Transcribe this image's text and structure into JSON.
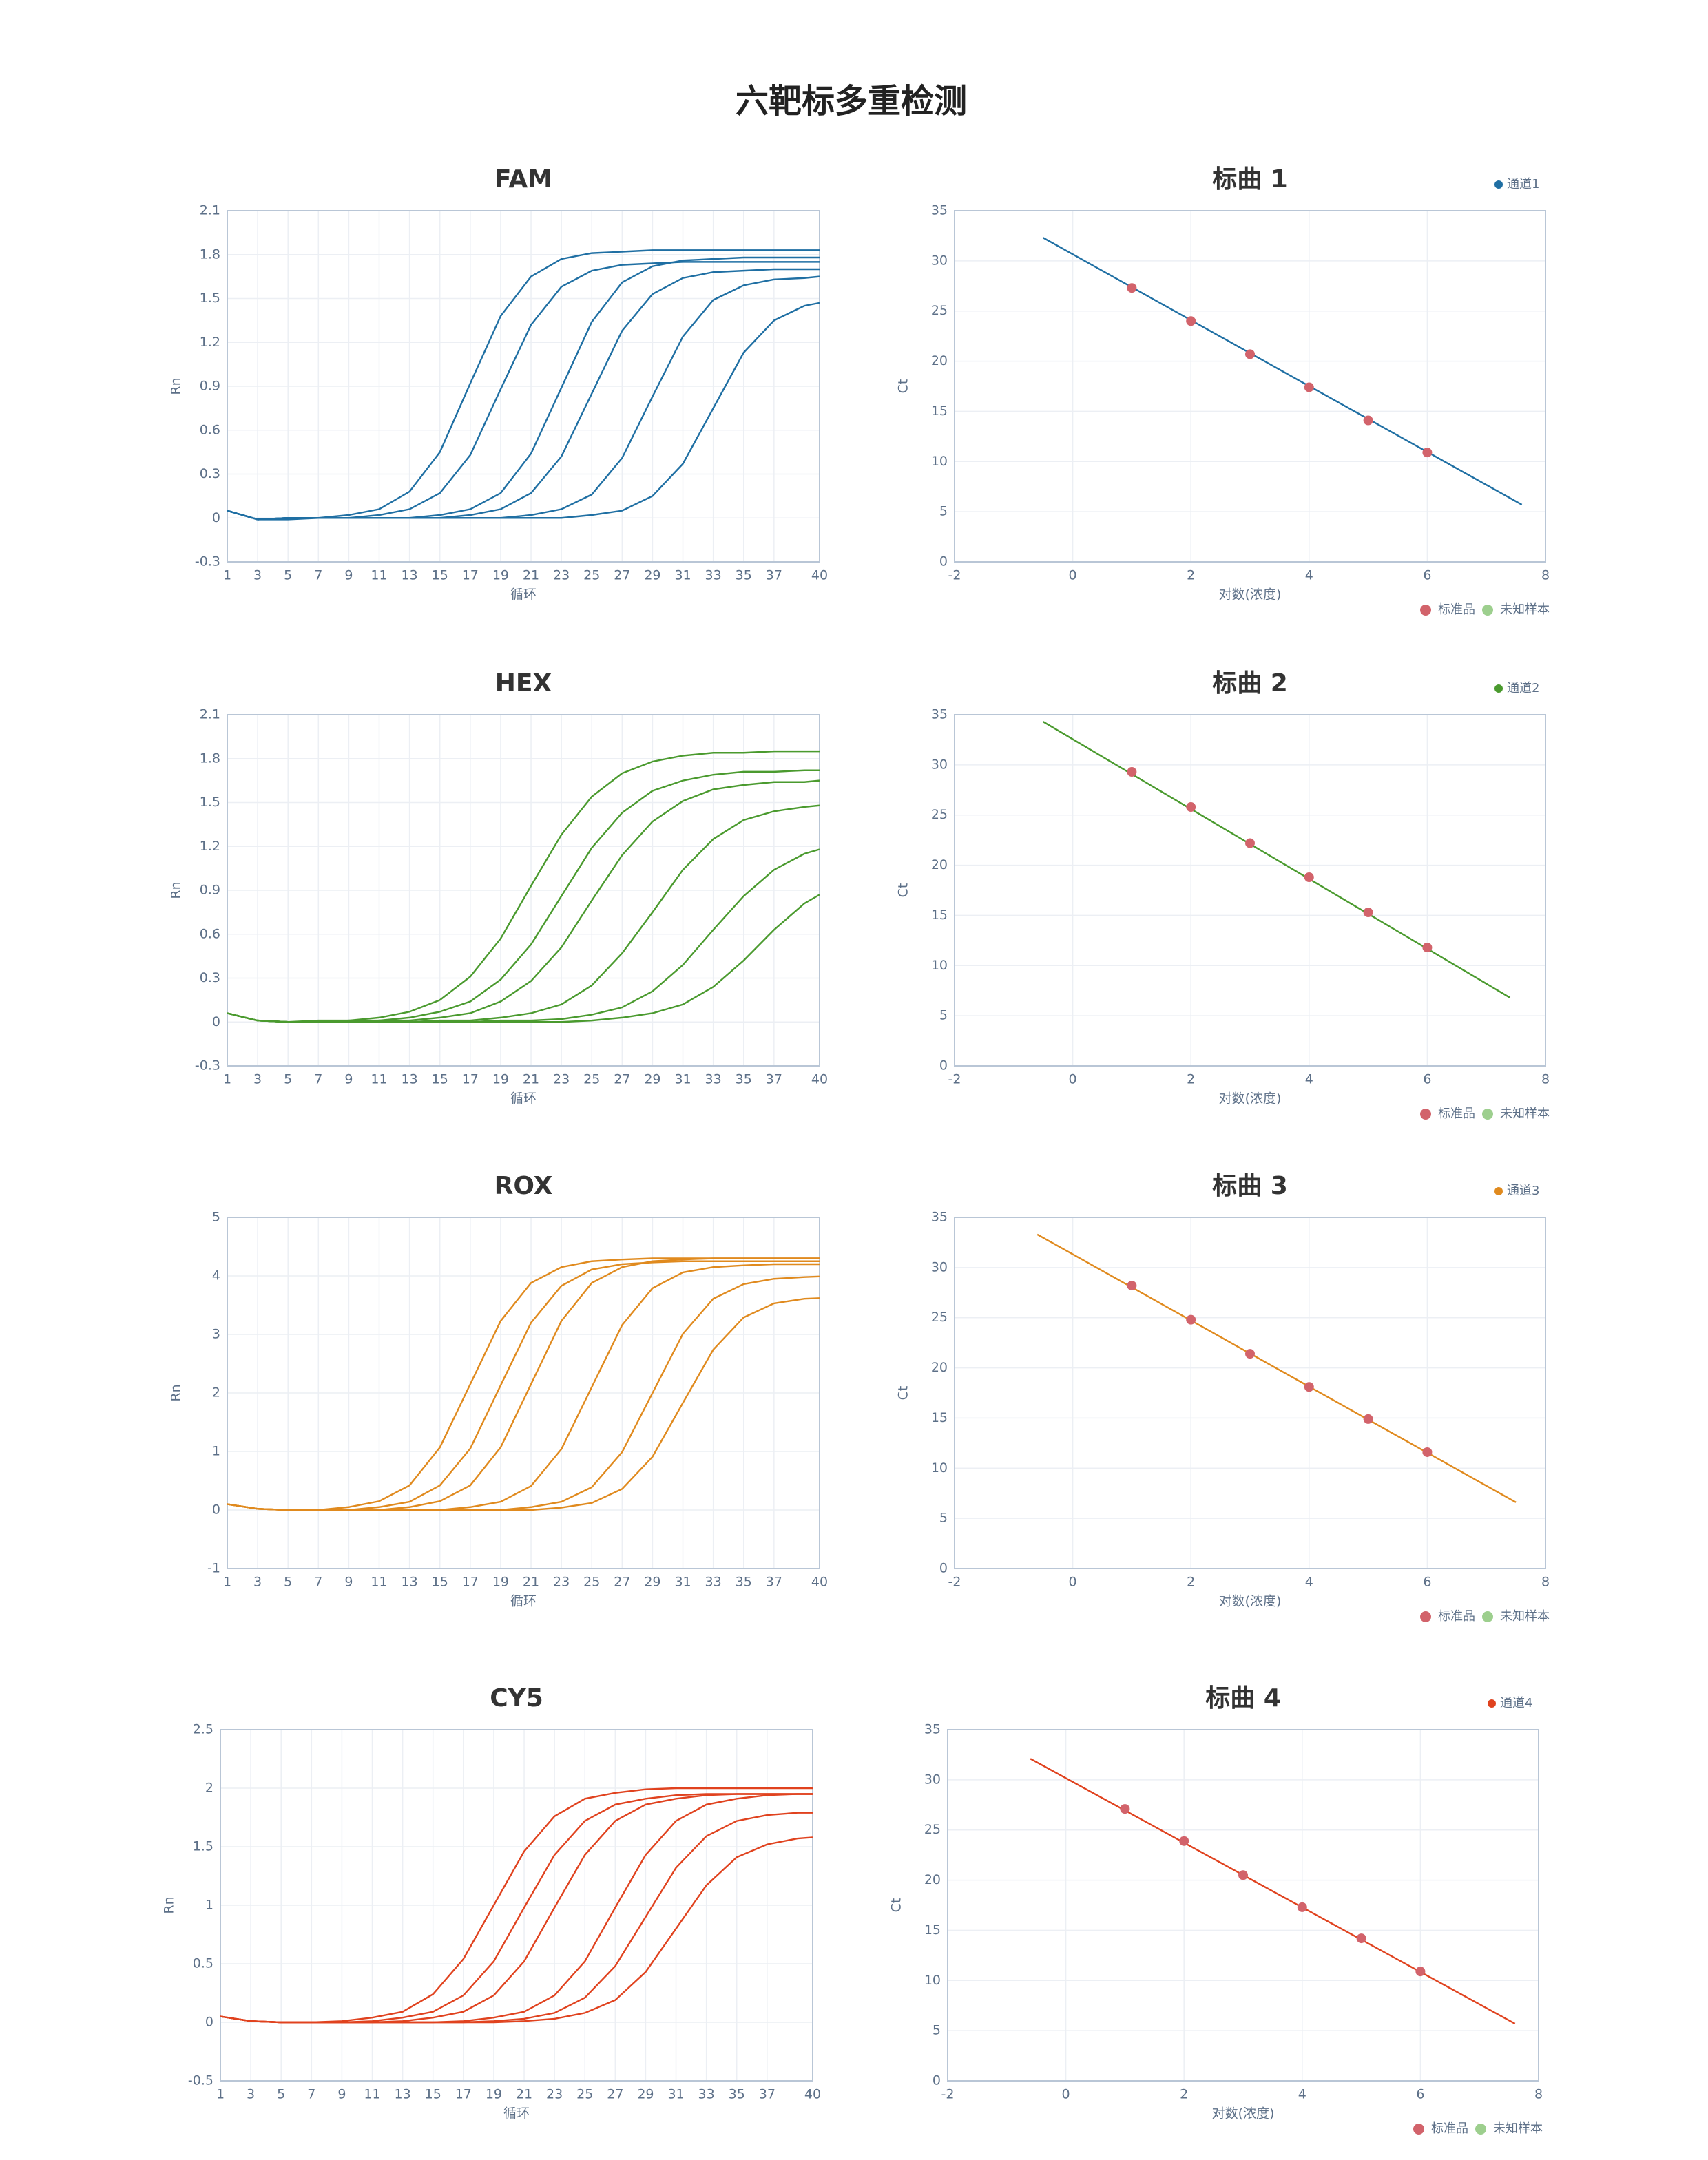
{
  "title": "六靶标多重检测",
  "chart_data": [
    {
      "type": "line",
      "title": "FAM",
      "x_label": "循环",
      "y_label": "Rn",
      "grid": true,
      "x": [
        1,
        3,
        5,
        7,
        9,
        11,
        13,
        15,
        17,
        19,
        21,
        23,
        25,
        27,
        29,
        31,
        33,
        35,
        37,
        39,
        40
      ],
      "xlim": [
        1,
        40
      ],
      "xticks": [
        1,
        3,
        5,
        7,
        9,
        11,
        13,
        15,
        17,
        19,
        21,
        23,
        25,
        27,
        29,
        31,
        33,
        35,
        37,
        40
      ],
      "ylim": [
        -0.3,
        2.1
      ],
      "yticks": [
        -0.3,
        0,
        0.3,
        0.6,
        0.9,
        1.2,
        1.5,
        1.8,
        2.1
      ],
      "series": [
        {
          "color": "#1f6fa3",
          "values": [
            0.05,
            -0.01,
            -0.01,
            0,
            0.02,
            0.06,
            0.18,
            0.45,
            0.92,
            1.38,
            1.65,
            1.77,
            1.81,
            1.82,
            1.83,
            1.83,
            1.83,
            1.83,
            1.83,
            1.83,
            1.83
          ]
        },
        {
          "color": "#1f6fa3",
          "values": [
            0.05,
            -0.01,
            0,
            0,
            0,
            0.02,
            0.06,
            0.17,
            0.43,
            0.88,
            1.32,
            1.58,
            1.69,
            1.73,
            1.74,
            1.75,
            1.75,
            1.75,
            1.75,
            1.75,
            1.75
          ]
        },
        {
          "color": "#1f6fa3",
          "values": [
            0.05,
            -0.01,
            0,
            0,
            0,
            0,
            0,
            0.02,
            0.06,
            0.17,
            0.44,
            0.89,
            1.34,
            1.61,
            1.72,
            1.76,
            1.77,
            1.78,
            1.78,
            1.78,
            1.78
          ]
        },
        {
          "color": "#1f6fa3",
          "values": [
            0.05,
            -0.01,
            0,
            0,
            0,
            0,
            0,
            0,
            0.02,
            0.06,
            0.17,
            0.42,
            0.85,
            1.28,
            1.53,
            1.64,
            1.68,
            1.69,
            1.7,
            1.7,
            1.7
          ]
        },
        {
          "color": "#1f6fa3",
          "values": [
            0.05,
            -0.01,
            0,
            0,
            0,
            0,
            0,
            0,
            0,
            0,
            0.02,
            0.06,
            0.16,
            0.41,
            0.83,
            1.24,
            1.49,
            1.59,
            1.63,
            1.64,
            1.65
          ]
        },
        {
          "color": "#1f6fa3",
          "values": [
            0.05,
            -0.01,
            0,
            0,
            0,
            0,
            0,
            0,
            0,
            0,
            0,
            0,
            0.02,
            0.05,
            0.15,
            0.37,
            0.75,
            1.13,
            1.35,
            1.45,
            1.47
          ]
        }
      ]
    },
    {
      "type": "scatter",
      "title": "标曲 1",
      "x_label": "对数(浓度)",
      "y_label": "Ct",
      "grid": true,
      "legend": "bottom-right",
      "xlim": [
        -2,
        8
      ],
      "xticks": [
        -2,
        0,
        2,
        4,
        6,
        8
      ],
      "ylim": [
        0,
        35
      ],
      "yticks": [
        0,
        5,
        10,
        15,
        20,
        25,
        30,
        35
      ],
      "fit": {
        "name": "通道1",
        "color": "#1f6fa3",
        "x": [
          -0.5,
          7.6
        ],
        "values": [
          32.3,
          5.7
        ]
      },
      "series": [
        {
          "name": "标准品",
          "color": "#d2636b",
          "x": [
            1,
            2,
            3,
            4,
            5,
            6
          ],
          "values": [
            27.3,
            24.0,
            20.7,
            17.4,
            14.1,
            10.9
          ]
        },
        {
          "name": "未知样本",
          "color": "#9dcf8e",
          "x": [],
          "values": []
        }
      ]
    },
    {
      "type": "line",
      "title": "HEX",
      "x_label": "循环",
      "y_label": "Rn",
      "grid": true,
      "x": [
        1,
        3,
        5,
        7,
        9,
        11,
        13,
        15,
        17,
        19,
        21,
        23,
        25,
        27,
        29,
        31,
        33,
        35,
        37,
        39,
        40
      ],
      "xlim": [
        1,
        40
      ],
      "xticks": [
        1,
        3,
        5,
        7,
        9,
        11,
        13,
        15,
        17,
        19,
        21,
        23,
        25,
        27,
        29,
        31,
        33,
        35,
        37,
        40
      ],
      "ylim": [
        -0.3,
        2.1
      ],
      "yticks": [
        -0.3,
        0,
        0.3,
        0.6,
        0.9,
        1.2,
        1.5,
        1.8,
        2.1
      ],
      "series": [
        {
          "color": "#4a9a2e",
          "values": [
            0.06,
            0.01,
            0,
            0.01,
            0.01,
            0.03,
            0.07,
            0.15,
            0.31,
            0.57,
            0.93,
            1.28,
            1.54,
            1.7,
            1.78,
            1.82,
            1.84,
            1.84,
            1.85,
            1.85,
            1.85
          ]
        },
        {
          "color": "#4a9a2e",
          "values": [
            0.06,
            0.01,
            0,
            0,
            0.01,
            0.01,
            0.03,
            0.07,
            0.14,
            0.29,
            0.53,
            0.86,
            1.19,
            1.43,
            1.58,
            1.65,
            1.69,
            1.71,
            1.71,
            1.72,
            1.72
          ]
        },
        {
          "color": "#4a9a2e",
          "values": [
            0.06,
            0.01,
            0,
            0,
            0,
            0.01,
            0.01,
            0.03,
            0.06,
            0.14,
            0.28,
            0.51,
            0.83,
            1.14,
            1.37,
            1.51,
            1.59,
            1.62,
            1.64,
            1.64,
            1.65
          ]
        },
        {
          "color": "#4a9a2e",
          "values": [
            0.06,
            0.01,
            0,
            0,
            0,
            0,
            0,
            0.01,
            0.01,
            0.03,
            0.06,
            0.12,
            0.25,
            0.47,
            0.75,
            1.04,
            1.25,
            1.38,
            1.44,
            1.47,
            1.48
          ]
        },
        {
          "color": "#4a9a2e",
          "values": [
            0.06,
            0.01,
            0,
            0,
            0,
            0,
            0,
            0,
            0,
            0.01,
            0.01,
            0.02,
            0.05,
            0.1,
            0.21,
            0.39,
            0.63,
            0.86,
            1.04,
            1.15,
            1.18
          ]
        },
        {
          "color": "#4a9a2e",
          "values": [
            0.06,
            0.01,
            0,
            0,
            0,
            0,
            0,
            0,
            0,
            0,
            0,
            0,
            0.01,
            0.03,
            0.06,
            0.12,
            0.24,
            0.42,
            0.63,
            0.81,
            0.87
          ]
        }
      ]
    },
    {
      "type": "scatter",
      "title": "标曲 2",
      "x_label": "对数(浓度)",
      "y_label": "Ct",
      "grid": true,
      "legend": "bottom-right",
      "xlim": [
        -2,
        8
      ],
      "xticks": [
        -2,
        0,
        2,
        4,
        6,
        8
      ],
      "ylim": [
        0,
        35
      ],
      "yticks": [
        0,
        5,
        10,
        15,
        20,
        25,
        30,
        35
      ],
      "fit": {
        "name": "通道2",
        "color": "#4a9a2e",
        "x": [
          -0.5,
          7.4
        ],
        "values": [
          34.3,
          6.8
        ]
      },
      "series": [
        {
          "name": "标准品",
          "color": "#d2636b",
          "x": [
            1,
            2,
            3,
            4,
            5,
            6
          ],
          "values": [
            29.3,
            25.8,
            22.2,
            18.8,
            15.3,
            11.8
          ]
        },
        {
          "name": "未知样本",
          "color": "#9dcf8e",
          "x": [],
          "values": []
        }
      ]
    },
    {
      "type": "line",
      "title": "ROX",
      "x_label": "循环",
      "y_label": "Rn",
      "grid": true,
      "x": [
        1,
        3,
        5,
        7,
        9,
        11,
        13,
        15,
        17,
        19,
        21,
        23,
        25,
        27,
        29,
        31,
        33,
        35,
        37,
        39,
        40
      ],
      "xlim": [
        1,
        40
      ],
      "xticks": [
        1,
        3,
        5,
        7,
        9,
        11,
        13,
        15,
        17,
        19,
        21,
        23,
        25,
        27,
        29,
        31,
        33,
        35,
        37,
        40
      ],
      "ylim": [
        -1,
        5
      ],
      "yticks": [
        -1,
        0,
        1,
        2,
        3,
        4,
        5
      ],
      "series": [
        {
          "color": "#e08a1e",
          "values": [
            0.1,
            0.02,
            0,
            0,
            0.05,
            0.15,
            0.42,
            1.07,
            2.15,
            3.23,
            3.88,
            4.15,
            4.25,
            4.28,
            4.3,
            4.3,
            4.3,
            4.3,
            4.3,
            4.3,
            4.3
          ]
        },
        {
          "color": "#e08a1e",
          "values": [
            0.1,
            0.02,
            0,
            0,
            0,
            0.05,
            0.14,
            0.42,
            1.05,
            2.13,
            3.2,
            3.83,
            4.11,
            4.2,
            4.23,
            4.25,
            4.25,
            4.25,
            4.25,
            4.25,
            4.25
          ]
        },
        {
          "color": "#e08a1e",
          "values": [
            0.1,
            0.02,
            0,
            0,
            0,
            0,
            0.05,
            0.15,
            0.42,
            1.07,
            2.15,
            3.23,
            3.88,
            4.15,
            4.25,
            4.28,
            4.3,
            4.3,
            4.3,
            4.3,
            4.3
          ]
        },
        {
          "color": "#e08a1e",
          "values": [
            0.1,
            0.02,
            0,
            0,
            0,
            0,
            0,
            0,
            0.05,
            0.14,
            0.41,
            1.04,
            2.1,
            3.16,
            3.79,
            4.06,
            4.15,
            4.18,
            4.2,
            4.2,
            4.2
          ]
        },
        {
          "color": "#e08a1e",
          "values": [
            0.1,
            0.02,
            0,
            0,
            0,
            0,
            0,
            0,
            0,
            0,
            0.05,
            0.14,
            0.39,
            0.99,
            2.0,
            3.01,
            3.61,
            3.86,
            3.95,
            3.98,
            3.99
          ]
        },
        {
          "color": "#e08a1e",
          "values": [
            0.1,
            0.02,
            0,
            0,
            0,
            0,
            0,
            0,
            0,
            0,
            0,
            0.04,
            0.12,
            0.36,
            0.91,
            1.83,
            2.74,
            3.29,
            3.53,
            3.61,
            3.62
          ]
        }
      ]
    },
    {
      "type": "scatter",
      "title": "标曲 3",
      "x_label": "对数(浓度)",
      "y_label": "Ct",
      "grid": true,
      "legend": "bottom-right",
      "xlim": [
        -2,
        8
      ],
      "xticks": [
        -2,
        0,
        2,
        4,
        6,
        8
      ],
      "ylim": [
        0,
        35
      ],
      "yticks": [
        0,
        5,
        10,
        15,
        20,
        25,
        30,
        35
      ],
      "fit": {
        "name": "通道3",
        "color": "#e08a1e",
        "x": [
          -0.6,
          7.5
        ],
        "values": [
          33.3,
          6.6
        ]
      },
      "series": [
        {
          "name": "标准品",
          "color": "#d2636b",
          "x": [
            1,
            2,
            3,
            4,
            5,
            6
          ],
          "values": [
            28.2,
            24.8,
            21.4,
            18.1,
            14.9,
            11.6
          ]
        },
        {
          "name": "未知样本",
          "color": "#9dcf8e",
          "x": [],
          "values": []
        }
      ]
    },
    {
      "type": "line",
      "title": "CY5",
      "x_label": "循环",
      "y_label": "Rn",
      "grid": true,
      "x": [
        1,
        3,
        5,
        7,
        9,
        11,
        13,
        15,
        17,
        19,
        21,
        23,
        25,
        27,
        29,
        31,
        33,
        35,
        37,
        39,
        40
      ],
      "xlim": [
        1,
        40
      ],
      "xticks": [
        1,
        3,
        5,
        7,
        9,
        11,
        13,
        15,
        17,
        19,
        21,
        23,
        25,
        27,
        29,
        31,
        33,
        35,
        37,
        40
      ],
      "ylim": [
        -0.5,
        2.5
      ],
      "yticks": [
        -0.5,
        0,
        0.5,
        1,
        1.5,
        2,
        2.5
      ],
      "series": [
        {
          "color": "#e0421e",
          "values": [
            0.05,
            0.01,
            0,
            0,
            0.01,
            0.04,
            0.09,
            0.24,
            0.54,
            1.0,
            1.46,
            1.76,
            1.91,
            1.96,
            1.99,
            2.0,
            2.0,
            2.0,
            2.0,
            2.0,
            2.0
          ]
        },
        {
          "color": "#e0421e",
          "values": [
            0.05,
            0.01,
            0,
            0,
            0,
            0.01,
            0.04,
            0.09,
            0.23,
            0.52,
            0.98,
            1.43,
            1.72,
            1.86,
            1.91,
            1.94,
            1.95,
            1.95,
            1.95,
            1.95,
            1.95
          ]
        },
        {
          "color": "#e0421e",
          "values": [
            0.05,
            0.01,
            0,
            0,
            0,
            0,
            0.01,
            0.04,
            0.09,
            0.23,
            0.52,
            0.98,
            1.43,
            1.72,
            1.86,
            1.91,
            1.94,
            1.95,
            1.95,
            1.95,
            1.95
          ]
        },
        {
          "color": "#e0421e",
          "values": [
            0.05,
            0.01,
            0,
            0,
            0,
            0,
            0,
            0,
            0.01,
            0.04,
            0.09,
            0.23,
            0.52,
            0.98,
            1.43,
            1.72,
            1.86,
            1.91,
            1.94,
            1.95,
            1.95
          ]
        },
        {
          "color": "#e0421e",
          "values": [
            0.05,
            0.01,
            0,
            0,
            0,
            0,
            0,
            0,
            0,
            0.01,
            0.03,
            0.08,
            0.21,
            0.48,
            0.9,
            1.32,
            1.59,
            1.72,
            1.77,
            1.79,
            1.79
          ]
        },
        {
          "color": "#e0421e",
          "values": [
            0.05,
            0.01,
            0,
            0,
            0,
            0,
            0,
            0,
            0,
            0,
            0.01,
            0.03,
            0.08,
            0.19,
            0.43,
            0.8,
            1.17,
            1.41,
            1.52,
            1.57,
            1.58
          ]
        }
      ]
    },
    {
      "type": "scatter",
      "title": "标曲 4",
      "x_label": "对数(浓度)",
      "y_label": "Ct",
      "grid": true,
      "legend": "bottom-right",
      "xlim": [
        -2,
        8
      ],
      "xticks": [
        -2,
        0,
        2,
        4,
        6,
        8
      ],
      "ylim": [
        0,
        35
      ],
      "yticks": [
        0,
        5,
        10,
        15,
        20,
        25,
        30,
        35
      ],
      "fit": {
        "name": "通道4",
        "color": "#e0421e",
        "x": [
          -0.6,
          7.6
        ],
        "values": [
          32.1,
          5.7
        ]
      },
      "series": [
        {
          "name": "标准品",
          "color": "#d2636b",
          "x": [
            1,
            2,
            3,
            4,
            5,
            6
          ],
          "values": [
            27.1,
            23.9,
            20.5,
            17.3,
            14.2,
            10.9
          ]
        },
        {
          "name": "未知样本",
          "color": "#9dcf8e",
          "x": [],
          "values": []
        }
      ]
    }
  ]
}
